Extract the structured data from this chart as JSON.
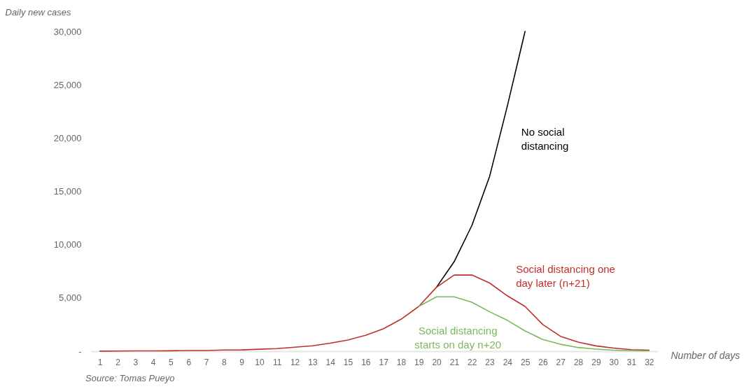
{
  "chart_data": {
    "type": "line",
    "xlabel": "Number of days",
    "ylabel": "Daily new cases",
    "annotations": [
      "Source: Tomas Pueyo"
    ],
    "xlim": [
      0.5,
      32.5
    ],
    "xticks": [
      1,
      2,
      3,
      4,
      5,
      6,
      7,
      8,
      9,
      10,
      11,
      12,
      13,
      14,
      15,
      16,
      17,
      18,
      19,
      20,
      21,
      22,
      23,
      24,
      25,
      26,
      27,
      28,
      29,
      30,
      31,
      32
    ],
    "ylim": [
      0,
      30000
    ],
    "yticks": [
      {
        "value": 0,
        "label": "-"
      },
      {
        "value": 5000,
        "label": "5,000"
      },
      {
        "value": 10000,
        "label": "10,000"
      },
      {
        "value": 15000,
        "label": "15,000"
      },
      {
        "value": 20000,
        "label": "20,000"
      },
      {
        "value": 25000,
        "label": "25,000"
      },
      {
        "value": 30000,
        "label": "30,000"
      }
    ],
    "grid": false,
    "legend": false,
    "marker": "none",
    "line_style": "solid",
    "series": [
      {
        "name": "No social\ndistancing",
        "color": "#000000",
        "x": [
          20,
          21,
          22,
          23,
          24,
          25
        ],
        "values": [
          6000,
          8400,
          11800,
          16400,
          23000,
          30000
        ]
      },
      {
        "name": "Social distancing one\nday later (n+21)",
        "color": "#c0302b",
        "x": [
          1,
          2,
          3,
          4,
          5,
          6,
          7,
          8,
          9,
          10,
          11,
          12,
          13,
          14,
          15,
          16,
          17,
          18,
          19,
          20,
          21,
          22,
          23,
          24,
          25,
          26,
          27,
          28,
          29,
          30,
          31,
          32
        ],
        "values": [
          10,
          20,
          30,
          30,
          40,
          70,
          70,
          110,
          120,
          190,
          250,
          380,
          510,
          750,
          1050,
          1500,
          2100,
          3000,
          4200,
          6000,
          7150,
          7150,
          6400,
          5200,
          4200,
          2500,
          1400,
          850,
          500,
          300,
          150,
          100
        ]
      },
      {
        "name": "Social distancing\nstarts on day n+20",
        "color": "#7cb85a",
        "x": [
          19,
          20,
          21,
          22,
          23,
          24,
          25,
          26,
          27,
          28,
          29,
          30,
          31,
          32
        ],
        "values": [
          4200,
          5100,
          5100,
          4600,
          3700,
          2900,
          1900,
          1100,
          650,
          350,
          200,
          100,
          50,
          30
        ]
      }
    ]
  }
}
